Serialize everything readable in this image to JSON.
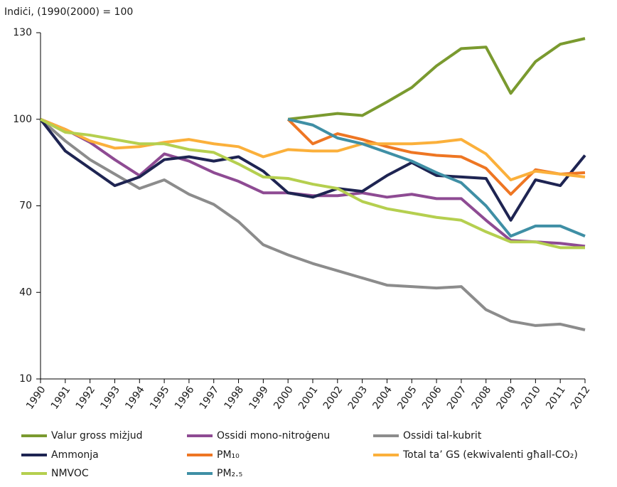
{
  "chart_data": {
    "type": "line",
    "ylabel": "Indiċi, (1990(2000) = 100",
    "categories": [
      "1990",
      "1991",
      "1992",
      "1993",
      "1994",
      "1995",
      "1996",
      "1997",
      "1998",
      "1999",
      "2000",
      "2001",
      "2002",
      "2003",
      "2004",
      "2005",
      "2006",
      "2007",
      "2008",
      "2009",
      "2010",
      "2011",
      "2012"
    ],
    "ylim": [
      10,
      130
    ],
    "yticks": [
      10,
      40,
      70,
      100,
      130
    ],
    "grid": false,
    "series": [
      {
        "name": "Valur gross miżjud",
        "color": "#7a9a2f",
        "values": [
          null,
          null,
          null,
          null,
          null,
          null,
          null,
          null,
          null,
          null,
          100,
          101,
          102,
          101.3,
          106,
          111,
          118.5,
          124.5,
          125,
          109,
          120,
          126,
          128
        ]
      },
      {
        "name": "Ossidi mono-nitroġenu",
        "color": "#8e4b93",
        "values": [
          100,
          96.5,
          92,
          86,
          80.5,
          88,
          85.5,
          81.5,
          78.5,
          74.5,
          74.5,
          73.5,
          73.5,
          74.5,
          73,
          74,
          72.5,
          72.5,
          65,
          58,
          57.5,
          57,
          56
        ]
      },
      {
        "name": "Ossidi tal-kubrit",
        "color": "#8c8c8c",
        "values": [
          100,
          92.5,
          86,
          81,
          76,
          79,
          74,
          70.5,
          64.5,
          56.5,
          53,
          50,
          47.5,
          45,
          42.5,
          42,
          41.5,
          42,
          34,
          30,
          28.5,
          29,
          27
        ]
      },
      {
        "name": "Ammonja",
        "color": "#1e2452",
        "values": [
          100,
          89,
          83,
          77,
          80,
          86,
          87,
          85.5,
          87,
          82,
          74.5,
          73,
          76,
          75,
          80.5,
          85,
          80.5,
          80,
          79.5,
          65,
          79,
          77,
          87.5
        ]
      },
      {
        "name": "PM₁₀",
        "color": "#ee7623",
        "values": [
          null,
          null,
          null,
          null,
          null,
          null,
          null,
          null,
          null,
          null,
          100,
          91.5,
          95,
          93,
          90.5,
          88.5,
          87.5,
          87,
          83,
          74,
          82.5,
          81,
          81.5
        ]
      },
      {
        "name": "Total ta’ GS (ekwivalenti għall-CO₂)",
        "color": "#fbb03b",
        "values": [
          100,
          96.5,
          92.5,
          90,
          90.5,
          92,
          93,
          91.5,
          90.5,
          87,
          89.5,
          89,
          89,
          91.5,
          91.5,
          91.5,
          92,
          93,
          88,
          79,
          82,
          81,
          80
        ]
      },
      {
        "name": "NMVOC",
        "color": "#b5cf4f",
        "values": [
          100,
          95.5,
          94.5,
          93,
          91.5,
          91.5,
          89.5,
          88.5,
          84.5,
          80,
          79.5,
          77.5,
          76,
          71.5,
          69,
          67.5,
          66,
          65,
          61,
          57.5,
          57.5,
          55.5,
          55.5
        ]
      },
      {
        "name": "PM₂.₅",
        "color": "#3f8fa5",
        "values": [
          null,
          null,
          null,
          null,
          null,
          null,
          null,
          null,
          null,
          null,
          100,
          98,
          93.5,
          91.5,
          88.5,
          85.5,
          81.5,
          78,
          70,
          59.5,
          63,
          63,
          59.5
        ]
      }
    ]
  }
}
